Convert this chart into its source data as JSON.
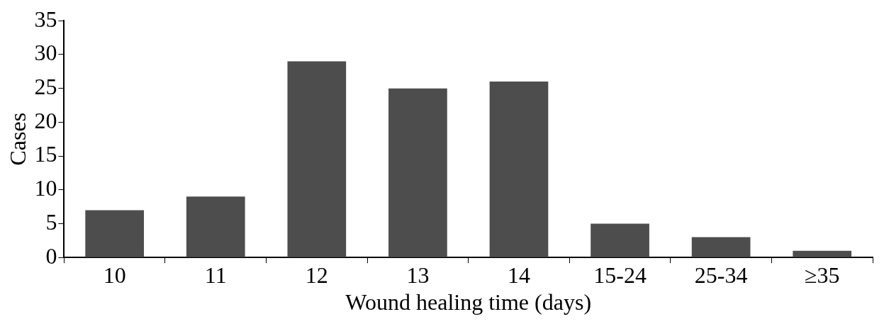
{
  "chart_data": {
    "type": "bar",
    "xlabel": "Wound healing time (days)",
    "ylabel": "Cases",
    "categories": [
      "10",
      "11",
      "12",
      "13",
      "14",
      "15-24",
      "25-34",
      "≥35"
    ],
    "values": [
      7,
      9,
      29,
      25,
      26,
      5,
      3,
      1
    ],
    "color": "#4d4d4d",
    "ylim": [
      0,
      35
    ],
    "yticks": [
      0,
      5,
      10,
      15,
      20,
      25,
      30,
      35
    ],
    "grid": false,
    "legend": false
  }
}
